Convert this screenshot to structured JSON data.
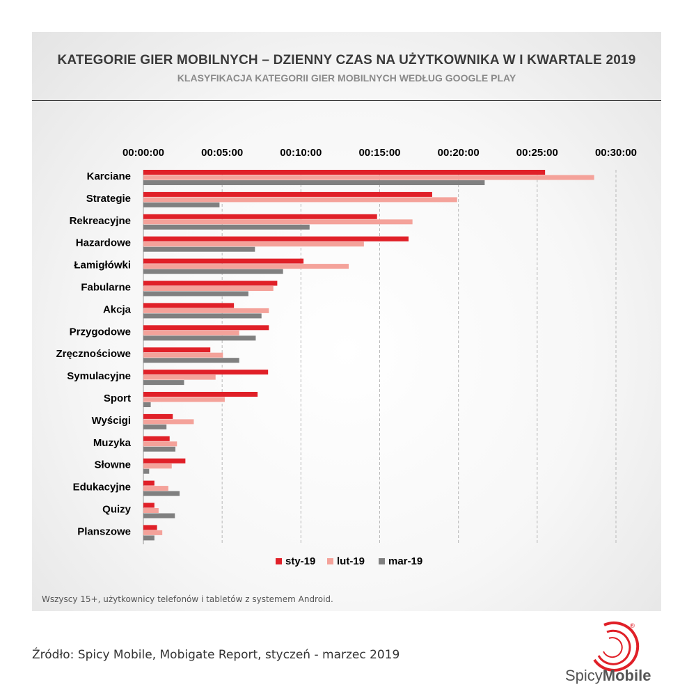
{
  "chart_data": {
    "type": "bar",
    "orientation": "horizontal",
    "title": "KATEGORIE GIER MOBILNYCH – DZIENNY CZAS NA UŻYTKOWNIKA W I KWARTALE 2019",
    "subtitle": "KLASYFIKACJA KATEGORII GIER MOBILNYCH WEDŁUG GOOGLE PLAY",
    "x_unit": "seconds",
    "xlim": [
      0,
      1800
    ],
    "ticks": [
      {
        "value": 0,
        "label": "00:00:00"
      },
      {
        "value": 300,
        "label": "00:05:00"
      },
      {
        "value": 600,
        "label": "00:10:00"
      },
      {
        "value": 900,
        "label": "00:15:00"
      },
      {
        "value": 1200,
        "label": "00:20:00"
      },
      {
        "value": 1500,
        "label": "00:25:00"
      },
      {
        "value": 1800,
        "label": "00:30:00"
      }
    ],
    "categories": [
      "Karciane",
      "Strategie",
      "Rekreacyjne",
      "Hazardowe",
      "Łamigłówki",
      "Fabularne",
      "Akcja",
      "Przygodowe",
      "Zręcznościowe",
      "Symulacyjne",
      "Sport",
      "Wyścigi",
      "Muzyka",
      "Słowne",
      "Edukacyjne",
      "Quizy",
      "Planszowe"
    ],
    "series": [
      {
        "name": "sty-19",
        "color": "#e02028",
        "values": [
          1530,
          1100,
          890,
          1010,
          610,
          510,
          345,
          478,
          255,
          475,
          435,
          112,
          100,
          160,
          42,
          42,
          52
        ]
      },
      {
        "name": "lut-19",
        "color": "#f4a29a",
        "values": [
          1717,
          1195,
          1025,
          840,
          782,
          495,
          478,
          365,
          303,
          275,
          310,
          192,
          128,
          108,
          95,
          58,
          72
        ]
      },
      {
        "name": "mar-19",
        "color": "#808080",
        "values": [
          1300,
          290,
          633,
          425,
          532,
          400,
          450,
          428,
          365,
          155,
          28,
          88,
          122,
          22,
          138,
          120,
          42
        ]
      }
    ],
    "legend_position": "bottom"
  },
  "note": "Wszyscy 15+, użytkownicy telefonów i tabletów z systemem Android.",
  "source": "Źródło: Spicy Mobile, Mobigate Report, styczeń - marzec 2019",
  "logo": {
    "part1": "Spicy",
    "part2": "Mobile",
    "registered": "®"
  }
}
